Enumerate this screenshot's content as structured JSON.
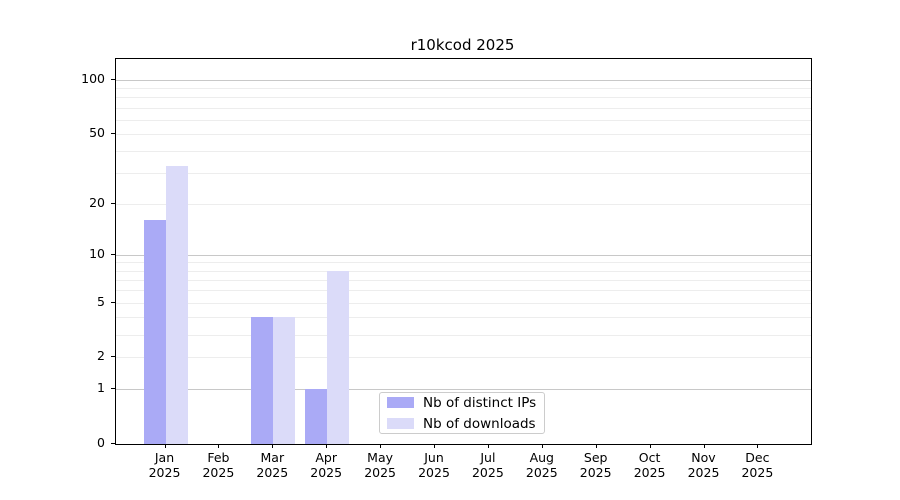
{
  "figure": {
    "background": "#ffffff"
  },
  "chart_data": {
    "type": "bar",
    "title": "r10kcod 2025",
    "categories": [
      "Jan",
      "Feb",
      "Mar",
      "Apr",
      "May",
      "Jun",
      "Jul",
      "Aug",
      "Sep",
      "Oct",
      "Nov",
      "Dec"
    ],
    "year_label": "2025",
    "series": [
      {
        "name": "Nb of distinct IPs",
        "color": "#aaaaf6",
        "values": [
          16,
          0,
          4,
          1,
          0,
          0,
          0,
          0,
          0,
          0,
          0,
          0
        ]
      },
      {
        "name": "Nb of downloads",
        "color": "#dbdbf9",
        "values": [
          33,
          0,
          4,
          8,
          0,
          0,
          0,
          0,
          0,
          0,
          0,
          0
        ]
      }
    ],
    "xlabel": "",
    "ylabel": "",
    "y_ticks": [
      0,
      1,
      2,
      5,
      10,
      20,
      50,
      100
    ],
    "y_scale": "symlog",
    "ylim": [
      0,
      113
    ],
    "grid": {
      "major": [
        1,
        10,
        100
      ],
      "minor": [
        2,
        3,
        4,
        5,
        6,
        7,
        8,
        9,
        20,
        30,
        40,
        50,
        60,
        70,
        80,
        90
      ]
    },
    "legend_position": "lower center",
    "grid_on": true
  },
  "colors": {
    "major_grid": "#c8c8c8",
    "minor_grid": "#ededed",
    "spine": "#000000",
    "text": "#000000",
    "legend_border": "#cccccc"
  }
}
